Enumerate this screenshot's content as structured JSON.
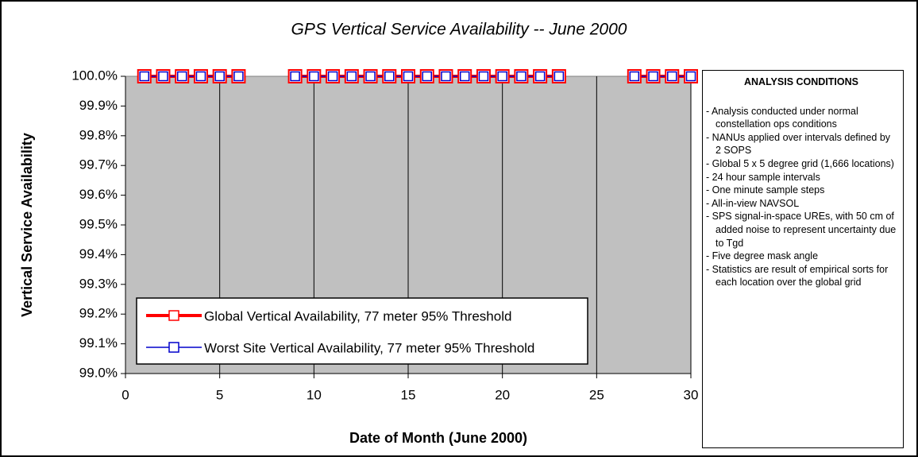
{
  "chart_data": {
    "type": "line",
    "title": "GPS Vertical Service Availability -- June 2000",
    "xlabel": "Date of Month (June 2000)",
    "ylabel": "Vertical Service Availability",
    "x": [
      1,
      2,
      3,
      4,
      5,
      6,
      7,
      8,
      9,
      10,
      11,
      12,
      13,
      14,
      15,
      16,
      17,
      18,
      19,
      20,
      21,
      22,
      23,
      24,
      25,
      26,
      27,
      28,
      29,
      30
    ],
    "series": [
      {
        "name": "Global Vertical Availability, 77 meter 95% Threshold",
        "color": "#ff0000",
        "values": [
          100,
          100,
          100,
          100,
          100,
          100,
          null,
          null,
          100,
          100,
          100,
          100,
          100,
          100,
          100,
          100,
          100,
          100,
          100,
          100,
          100,
          100,
          100,
          null,
          null,
          null,
          100,
          100,
          100,
          100
        ]
      },
      {
        "name": "Worst Site Vertical Availability, 77 meter 95% Threshold",
        "color": "#0000cc",
        "values": [
          100,
          100,
          100,
          100,
          100,
          100,
          null,
          null,
          100,
          100,
          100,
          100,
          100,
          100,
          100,
          100,
          100,
          100,
          100,
          100,
          100,
          100,
          100,
          null,
          null,
          null,
          100,
          100,
          100,
          100
        ]
      }
    ],
    "xlim": [
      0,
      30
    ],
    "xticks": [
      0,
      5,
      10,
      15,
      20,
      25,
      30
    ],
    "ylim": [
      99.0,
      100.0
    ],
    "yticks": [
      {
        "value": 99.0,
        "label": "99.0%"
      },
      {
        "value": 99.1,
        "label": "99.1%"
      },
      {
        "value": 99.2,
        "label": "99.2%"
      },
      {
        "value": 99.3,
        "label": "99.3%"
      },
      {
        "value": 99.4,
        "label": "99.4%"
      },
      {
        "value": 99.5,
        "label": "99.5%"
      },
      {
        "value": 99.6,
        "label": "99.6%"
      },
      {
        "value": 99.7,
        "label": "99.7%"
      },
      {
        "value": 99.8,
        "label": "99.8%"
      },
      {
        "value": 99.9,
        "label": "99.9%"
      },
      {
        "value": 100.0,
        "label": "100.0%"
      }
    ],
    "grid": "x",
    "plot_background": "#c0c0c0",
    "legend": "lower left",
    "side_panel": {
      "title": "ANALYSIS CONDITIONS",
      "items": [
        "- Analysis conducted under normal constellation ops conditions",
        "- NANUs applied over intervals defined by 2 SOPS",
        "- Global 5 x 5 degree grid (1,666 locations)",
        "- 24 hour sample intervals",
        "- One minute sample steps",
        "- All-in-view NAVSOL",
        "- SPS signal-in-space UREs, with 50 cm of added noise to represent uncertainty due to Tgd",
        "- Five degree mask angle",
        "- Statistics are result of empirical sorts for each location over the global grid"
      ]
    }
  }
}
